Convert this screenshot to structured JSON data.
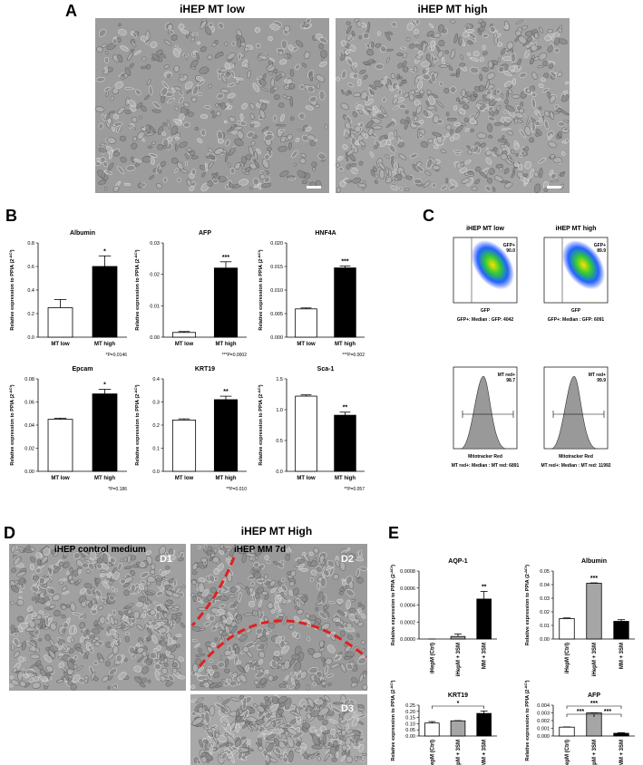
{
  "panel_labels": [
    "A",
    "B",
    "C",
    "D",
    "E"
  ],
  "panel_a": {
    "left_title": "iHEP MT low",
    "right_title": "iHEP MT high"
  },
  "chart_data": [
    {
      "type": "bar",
      "title": "Albumin",
      "ylabel": "Relative expression to PPIA (2",
      "ylabel_sup": "-ΔCt",
      "ylabel_end": ")",
      "categories": [
        "MT low",
        "MT high"
      ],
      "values": [
        0.25,
        0.6
      ],
      "errors": [
        0.07,
        0.09
      ],
      "colors": [
        "#ffffff",
        "#000000"
      ],
      "ylim": [
        0,
        0.8
      ],
      "yticks": [
        {
          "value": 0,
          "label": "0.0"
        },
        0.2,
        0.4,
        0.6,
        0.8
      ],
      "significance": [
        null,
        "*"
      ],
      "footnote": "*P=0.0146"
    },
    {
      "type": "bar",
      "title": "AFP",
      "ylabel": "Relative expression to PPIA (2",
      "ylabel_sup": "-ΔCt",
      "ylabel_end": ")",
      "categories": [
        "MT low",
        "MT high"
      ],
      "values": [
        0.0015,
        0.022
      ],
      "errors": [
        0.0003,
        0.002
      ],
      "colors": [
        "#ffffff",
        "#000000"
      ],
      "ylim": [
        0,
        0.03
      ],
      "yticks": [
        {
          "value": 0,
          "label": "0.00"
        },
        0.01,
        0.02,
        0.03
      ],
      "significance": [
        null,
        "***"
      ],
      "footnote": "***P=0.0002"
    },
    {
      "type": "bar",
      "title": "HNF4A",
      "ylabel": "Relative expression to PPIA (2",
      "ylabel_sup": "-ΔCt",
      "ylabel_end": ")",
      "categories": [
        "MT low",
        "MT high"
      ],
      "values": [
        0.006,
        0.0147
      ],
      "errors": [
        0.0002,
        0.0004
      ],
      "colors": [
        "#ffffff",
        "#000000"
      ],
      "ylim": [
        0,
        0.02
      ],
      "yticks": [
        {
          "value": 0,
          "label": "0.000"
        },
        0.005,
        {
          "value": 0.01,
          "label": "0.010"
        },
        0.015,
        {
          "value": 0.02,
          "label": "0.020"
        }
      ],
      "significance": [
        null,
        "***"
      ],
      "footnote": "***P=0.002"
    },
    {
      "type": "bar",
      "title": "Epcam",
      "ylabel": "Relative expression to PPIA (2",
      "ylabel_sup": "-ΔCt",
      "ylabel_end": ")",
      "categories": [
        "MT low",
        "MT high"
      ],
      "values": [
        0.045,
        0.067
      ],
      "errors": [
        0.001,
        0.004
      ],
      "colors": [
        "#ffffff",
        "#000000"
      ],
      "ylim": [
        0,
        0.08
      ],
      "yticks": [
        {
          "value": 0,
          "label": "0.00"
        },
        0.02,
        0.04,
        0.06,
        0.08
      ],
      "significance": [
        null,
        "*"
      ],
      "footnote": "*P=0.186"
    },
    {
      "type": "bar",
      "title": "KRT19",
      "ylabel": "Relative expression to PPIA (2",
      "ylabel_sup": "-ΔCt",
      "ylabel_end": ")",
      "categories": [
        "MT low",
        "MT high"
      ],
      "values": [
        0.222,
        0.31
      ],
      "errors": [
        0.005,
        0.015
      ],
      "colors": [
        "#ffffff",
        "#000000"
      ],
      "ylim": [
        0,
        0.4
      ],
      "yticks": [
        {
          "value": 0,
          "label": "0.0"
        },
        0.1,
        0.2,
        0.3,
        0.4
      ],
      "significance": [
        null,
        "**"
      ],
      "footnote": "**P=0.010"
    },
    {
      "type": "bar",
      "title": "Sca-1",
      "ylabel": "Relative expression to PPIA (2",
      "ylabel_sup": "-ΔCt",
      "ylabel_end": ")",
      "categories": [
        "MT low",
        "MT high"
      ],
      "values": [
        1.22,
        0.91
      ],
      "errors": [
        0.02,
        0.05
      ],
      "colors": [
        "#ffffff",
        "#000000"
      ],
      "ylim": [
        0,
        1.5
      ],
      "yticks": [
        {
          "value": 0,
          "label": "0.0"
        },
        0.5,
        {
          "value": 1,
          "label": "1.0"
        },
        1.5
      ],
      "significance": [
        null,
        "**"
      ],
      "footnote": "**P=0.057"
    },
    {
      "type": "bar",
      "title": "AQP-1",
      "ylabel": "Relative expression to PPIA (2",
      "ylabel_sup": "-ΔCt",
      "ylabel_end": ")",
      "categories": [
        "iHepM (Ctrl)",
        "iHepM + 3SM",
        "MM + 3SM"
      ],
      "values": [
        0,
        3e-05,
        0.00047
      ],
      "errors": [
        0,
        3e-05,
        9e-05
      ],
      "colors": [
        "#ffffff",
        "#a6a6a6",
        "#000000"
      ],
      "ylim": [
        0,
        0.0008
      ],
      "yticks": [
        {
          "value": 0,
          "label": "0.0000"
        },
        0.0002,
        0.0004,
        0.0006,
        0.0008
      ],
      "significance": [
        null,
        null,
        "**"
      ]
    },
    {
      "type": "bar",
      "title": "Albumin",
      "ylabel": "Relative expression to PPIA (2",
      "ylabel_sup": "-ΔCt",
      "ylabel_end": ")",
      "categories": [
        "iHepM (Ctrl)",
        "iHepM + 3SM",
        "MM + 3SM"
      ],
      "values": [
        0.015,
        0.041,
        0.013
      ],
      "errors": [
        0.0005,
        0.0003,
        0.0012
      ],
      "colors": [
        "#ffffff",
        "#a6a6a6",
        "#000000"
      ],
      "ylim": [
        0,
        0.05
      ],
      "yticks": [
        {
          "value": 0,
          "label": "0.00"
        },
        0.01,
        0.02,
        0.03,
        0.04,
        0.05
      ],
      "significance": [
        null,
        "***",
        null
      ]
    },
    {
      "type": "bar",
      "title": "KRT19",
      "ylabel": "Relative expression to PPIA (2",
      "ylabel_sup": "-ΔCt",
      "ylabel_end": ")",
      "categories": [
        "iHepM (Ctrl)",
        "iHepM + 3SM",
        "MM + 3SM"
      ],
      "values": [
        0.105,
        0.123,
        0.183
      ],
      "errors": [
        0.012,
        0.002,
        0.02
      ],
      "colors": [
        "#ffffff",
        "#a6a6a6",
        "#000000"
      ],
      "ylim": [
        0,
        0.25
      ],
      "yticks": [
        {
          "value": 0,
          "label": "0.00"
        },
        0.05,
        {
          "value": 0.1,
          "label": "0.10"
        },
        0.15,
        {
          "value": 0.2,
          "label": "0.20"
        },
        0.25
      ],
      "brackets": [
        {
          "between": [
            "iHepM (Ctrl)",
            "MM + 3SM"
          ],
          "label": "*"
        }
      ]
    },
    {
      "type": "bar",
      "title": "AFP",
      "ylabel": "Relative expression to PPIA (2",
      "ylabel_sup": "-ΔCt",
      "ylabel_end": ")",
      "categories": [
        "iHepM (Ctrl)",
        "iHepM + 3SM",
        "MM + 3SM"
      ],
      "values": [
        0.00115,
        0.003,
        0.00035
      ],
      "errors": [
        3e-05,
        1e-05,
        8e-05
      ],
      "colors": [
        "#ffffff",
        "#a6a6a6",
        "#000000"
      ],
      "ylim": [
        0,
        0.004
      ],
      "yticks": [
        {
          "value": 0,
          "label": "0.000"
        },
        0.001,
        0.002,
        0.003,
        0.004
      ],
      "brackets": [
        {
          "between": [
            "iHepM (Ctrl)",
            "MM + 3SM"
          ],
          "label": "***"
        },
        {
          "between": [
            "iHepM (Ctrl)",
            "iHepM + 3SM"
          ],
          "label": "***"
        },
        {
          "between": [
            "iHepM + 3SM",
            "MM + 3SM"
          ],
          "label": "***"
        }
      ]
    }
  ],
  "panel_c": {
    "plots": [
      {
        "title": "iHEP MT low",
        "gate": "GFP+",
        "percent": "90.0",
        "xlabel": "GFP",
        "stat": "GFP+: Median : GFP: 4042"
      },
      {
        "title": "iHEP MT high",
        "gate": "GFP+",
        "percent": "89.9",
        "xlabel": "GFP",
        "stat": "GFP+: Median : GFP: 6091"
      },
      {
        "gate": "MT red+",
        "percent": "98.7",
        "xlabel": "Mitotracker Red",
        "stat": "MT red+: Median : MT red: 6891"
      },
      {
        "gate": "MT red+",
        "percent": "99.9",
        "xlabel": "Mitotracker Red",
        "stat": "MT red+: Median : MT red: 11992"
      }
    ]
  },
  "panel_d": {
    "title": "iHEP MT High",
    "left_title": "iHEP control medium",
    "right_title": "iHEP MM 7d",
    "tags": [
      "D1",
      "D2",
      "D3"
    ]
  }
}
